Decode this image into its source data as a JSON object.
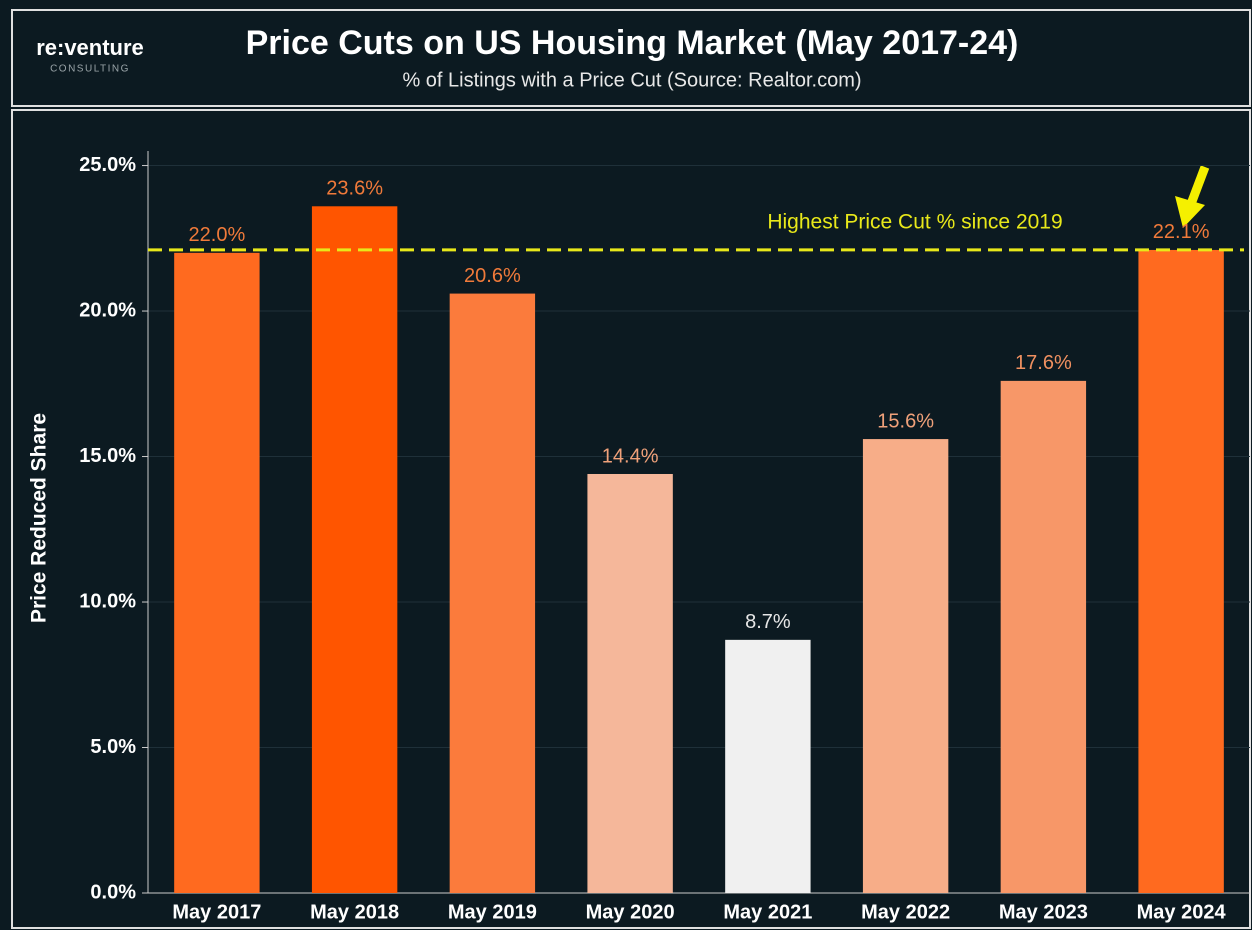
{
  "chart_data": {
    "type": "bar",
    "logo": "re:venture",
    "logo_sub": "CONSULTING",
    "title": "Price Cuts on US Housing Market (May 2017-24)",
    "subtitle": "% of Listings with a Price Cut (Source: Realtor.com)",
    "ylabel": "Price Reduced Share",
    "categories": [
      "May 2017",
      "May 2018",
      "May 2019",
      "May 2020",
      "May 2021",
      "May 2022",
      "May 2023",
      "May 2024"
    ],
    "values": [
      22.0,
      23.6,
      20.6,
      14.4,
      8.7,
      15.6,
      17.6,
      22.1
    ],
    "value_labels": [
      "22.0%",
      "23.6%",
      "20.6%",
      "14.4%",
      "8.7%",
      "15.6%",
      "17.6%",
      "22.1%"
    ],
    "colors": [
      "#ff6a1f",
      "#ff5500",
      "#fb7b3c",
      "#f5b79a",
      "#f0f0f0",
      "#f7ad88",
      "#f79768",
      "#ff6a1f"
    ],
    "label_colors": [
      "#f07a3a",
      "#f07a3a",
      "#f07a3a",
      "#f0a17a",
      "#e6e6e6",
      "#f0a17a",
      "#f09060",
      "#f07a3a"
    ],
    "reference_line": {
      "value": 22.1,
      "label": "Highest Price Cut % since 2019",
      "color": "#e8e81a"
    },
    "ylim": [
      0,
      25.5
    ],
    "yticks": [
      {
        "value": 0,
        "label": "0.0%"
      },
      {
        "value": 5,
        "label": "5.0%"
      },
      {
        "value": 10,
        "label": "10.0%"
      },
      {
        "value": 15,
        "label": "15.0%"
      },
      {
        "value": 20,
        "label": "20.0%"
      },
      {
        "value": 25,
        "label": "25.0%"
      }
    ],
    "grid": true
  }
}
